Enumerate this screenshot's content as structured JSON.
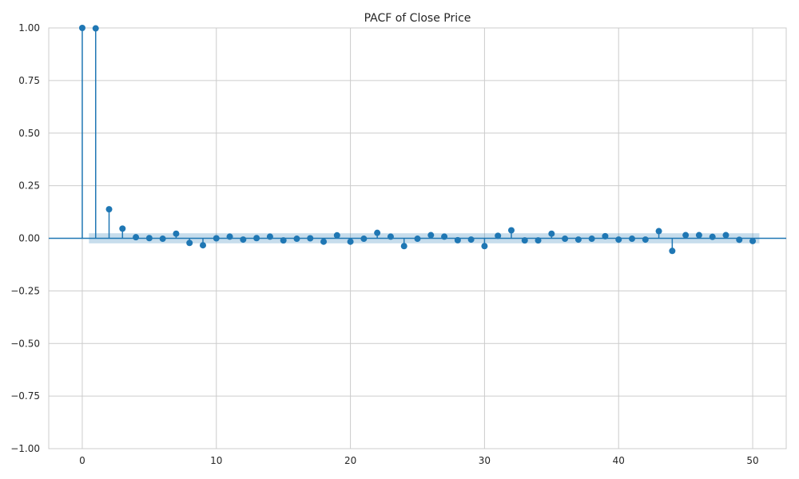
{
  "chart_data": {
    "type": "stem",
    "title": "PACF of Close Price",
    "xlabel": "",
    "ylabel": "",
    "xlim": [
      -2.5,
      52.5
    ],
    "ylim": [
      -1.0,
      1.0
    ],
    "xticks": [
      0,
      10,
      20,
      30,
      40,
      50
    ],
    "xtick_labels": [
      "0",
      "10",
      "20",
      "30",
      "40",
      "50"
    ],
    "yticks": [
      -1.0,
      -0.75,
      -0.5,
      -0.25,
      0.0,
      0.25,
      0.5,
      0.75,
      1.0
    ],
    "ytick_labels": [
      "−1.00",
      "−0.75",
      "−0.50",
      "−0.25",
      "0.00",
      "0.25",
      "0.50",
      "0.75",
      "1.00"
    ],
    "grid": true,
    "confidence_band": 0.024,
    "colors": {
      "marker": "#1f77b4",
      "band": "#1f77b4",
      "grid": "#cccccc"
    },
    "series": [
      {
        "x": [
          0,
          1,
          2,
          3,
          4,
          5,
          6,
          7,
          8,
          9,
          10,
          11,
          12,
          13,
          14,
          15,
          16,
          17,
          18,
          19,
          20,
          21,
          22,
          23,
          24,
          25,
          26,
          27,
          28,
          29,
          30,
          31,
          32,
          33,
          34,
          35,
          36,
          37,
          38,
          39,
          40,
          41,
          42,
          43,
          44,
          45,
          46,
          47,
          48,
          49,
          50
        ],
        "values": [
          1.0,
          0.998,
          0.138,
          0.046,
          0.005,
          0.001,
          -0.002,
          0.022,
          -0.022,
          -0.033,
          0.0,
          0.008,
          -0.006,
          0.001,
          0.008,
          -0.01,
          -0.002,
          0.0,
          -0.016,
          0.014,
          -0.016,
          -0.002,
          0.026,
          0.008,
          -0.037,
          -0.002,
          0.015,
          0.008,
          -0.009,
          -0.006,
          -0.037,
          0.012,
          0.038,
          -0.01,
          -0.01,
          0.022,
          -0.002,
          -0.006,
          -0.002,
          0.01,
          -0.006,
          -0.002,
          -0.006,
          0.034,
          -0.06,
          0.015,
          0.015,
          0.007,
          0.015,
          -0.007,
          -0.013
        ]
      }
    ]
  }
}
